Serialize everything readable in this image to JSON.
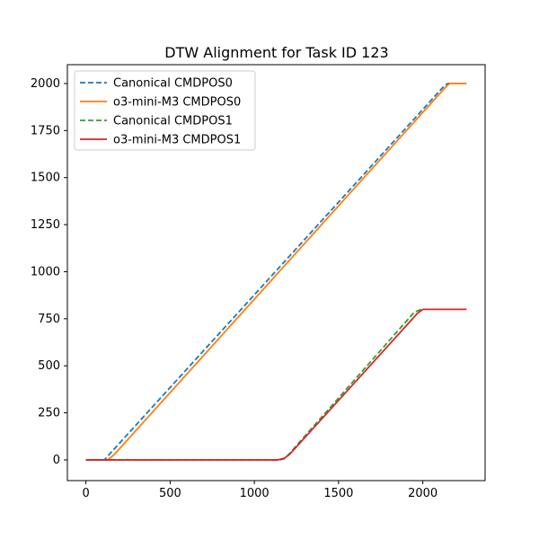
{
  "chart_data": {
    "type": "line",
    "title": "DTW Alignment for Task ID 123",
    "xlabel": "",
    "ylabel": "",
    "xlim": [
      -110,
      2370
    ],
    "ylim": [
      -110,
      2100
    ],
    "xticks": [
      0,
      500,
      1000,
      1500,
      2000
    ],
    "yticks": [
      0,
      250,
      500,
      750,
      1000,
      1250,
      1500,
      1750,
      2000
    ],
    "grid": false,
    "legend_position": "upper-left",
    "series": [
      {
        "name": "Canonical CMDPOS0",
        "color": "#1f77b4",
        "linestyle": "dashed",
        "points": [
          [
            0,
            0
          ],
          [
            110,
            0
          ],
          [
            150,
            40
          ],
          [
            2130,
            1990
          ],
          [
            2150,
            2000
          ],
          [
            2170,
            2000
          ]
        ]
      },
      {
        "name": "o3-mini-M3 CMDPOS0",
        "color": "#ff7f0e",
        "linestyle": "solid",
        "points": [
          [
            0,
            0
          ],
          [
            130,
            0
          ],
          [
            170,
            30
          ],
          [
            2140,
            1985
          ],
          [
            2160,
            2000
          ],
          [
            2260,
            2000
          ]
        ]
      },
      {
        "name": "Canonical CMDPOS1",
        "color": "#2ca02c",
        "linestyle": "dashed",
        "points": [
          [
            0,
            0
          ],
          [
            1150,
            0
          ],
          [
            1175,
            5
          ],
          [
            1200,
            25
          ],
          [
            1950,
            785
          ],
          [
            1990,
            800
          ],
          [
            2010,
            800
          ]
        ]
      },
      {
        "name": "o3-mini-M3 CMDPOS1",
        "color": "#d62728",
        "linestyle": "solid",
        "points": [
          [
            0,
            0
          ],
          [
            1140,
            0
          ],
          [
            1180,
            10
          ],
          [
            1210,
            30
          ],
          [
            1970,
            780
          ],
          [
            2000,
            800
          ],
          [
            2260,
            800
          ]
        ]
      }
    ]
  }
}
